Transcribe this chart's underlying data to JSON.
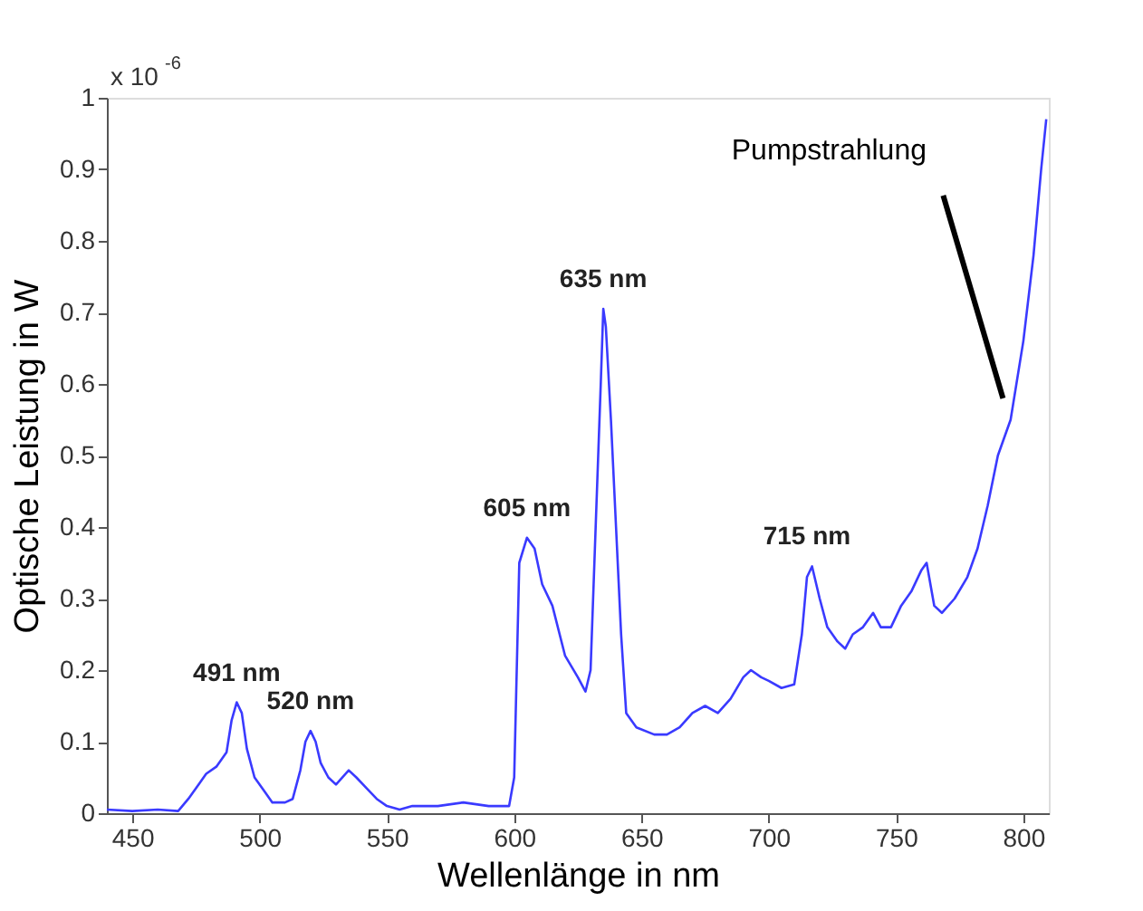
{
  "chart_data": {
    "type": "line",
    "xlabel": "Wellenlänge  in nm",
    "ylabel": "Optische Leistung in W",
    "x": [
      440,
      450,
      460,
      468,
      472,
      476,
      479,
      483,
      487,
      489,
      491,
      493,
      495,
      498,
      502,
      505,
      510,
      513,
      516,
      518,
      520,
      522,
      524,
      527,
      530,
      535,
      538,
      542,
      546,
      550,
      555,
      560,
      570,
      580,
      590,
      598,
      600,
      601,
      602,
      605,
      608,
      611,
      615,
      620,
      625,
      628,
      630,
      632,
      634,
      635,
      636,
      638,
      640,
      642,
      644,
      648,
      655,
      660,
      665,
      670,
      675,
      680,
      685,
      690,
      693,
      697,
      700,
      705,
      710,
      713,
      715,
      717,
      720,
      723,
      727,
      730,
      733,
      737,
      741,
      744,
      748,
      752,
      756,
      760,
      762,
      765,
      768,
      773,
      778,
      782,
      786,
      790,
      795,
      800,
      804,
      807,
      809
    ],
    "series": [
      {
        "color": "#3a3aff",
        "values": [
          0.005,
          0.003,
          0.005,
          0.003,
          0.02,
          0.04,
          0.055,
          0.065,
          0.085,
          0.13,
          0.155,
          0.14,
          0.09,
          0.05,
          0.03,
          0.015,
          0.015,
          0.02,
          0.06,
          0.1,
          0.115,
          0.1,
          0.07,
          0.05,
          0.04,
          0.06,
          0.05,
          0.035,
          0.02,
          0.01,
          0.005,
          0.01,
          0.01,
          0.015,
          0.01,
          0.01,
          0.05,
          0.2,
          0.35,
          0.385,
          0.37,
          0.32,
          0.29,
          0.22,
          0.19,
          0.17,
          0.2,
          0.4,
          0.6,
          0.705,
          0.68,
          0.55,
          0.4,
          0.25,
          0.14,
          0.12,
          0.11,
          0.11,
          0.12,
          0.14,
          0.15,
          0.14,
          0.16,
          0.19,
          0.2,
          0.19,
          0.185,
          0.175,
          0.18,
          0.25,
          0.33,
          0.345,
          0.3,
          0.26,
          0.24,
          0.23,
          0.25,
          0.26,
          0.28,
          0.26,
          0.26,
          0.29,
          0.31,
          0.34,
          0.35,
          0.29,
          0.28,
          0.3,
          0.33,
          0.37,
          0.43,
          0.5,
          0.55,
          0.66,
          0.78,
          0.9,
          0.97
        ]
      }
    ],
    "xlim": [
      440,
      810
    ],
    "xticks": [
      450,
      500,
      550,
      600,
      650,
      700,
      750,
      800
    ],
    "ylim": [
      0,
      1
    ],
    "yticks": [
      0,
      0.1,
      0.2,
      0.3,
      0.4,
      0.5,
      0.6,
      0.7,
      0.8,
      0.9,
      1
    ],
    "grid": false,
    "line_style": "solid",
    "marker": "none",
    "annotations": [
      "x 10$^{-6}$",
      {
        "text": "491 nm",
        "x": 491,
        "y": 0.155
      },
      {
        "text": "520 nm",
        "x": 520,
        "y": 0.115
      },
      {
        "text": "605 nm",
        "x": 605,
        "y": 0.385
      },
      {
        "text": "635 nm",
        "x": 635,
        "y": 0.705
      },
      {
        "text": "715 nm",
        "x": 715,
        "y": 0.345
      },
      {
        "text": "Pumpstrahlung",
        "x": 792,
        "y": 0.58
      }
    ]
  }
}
